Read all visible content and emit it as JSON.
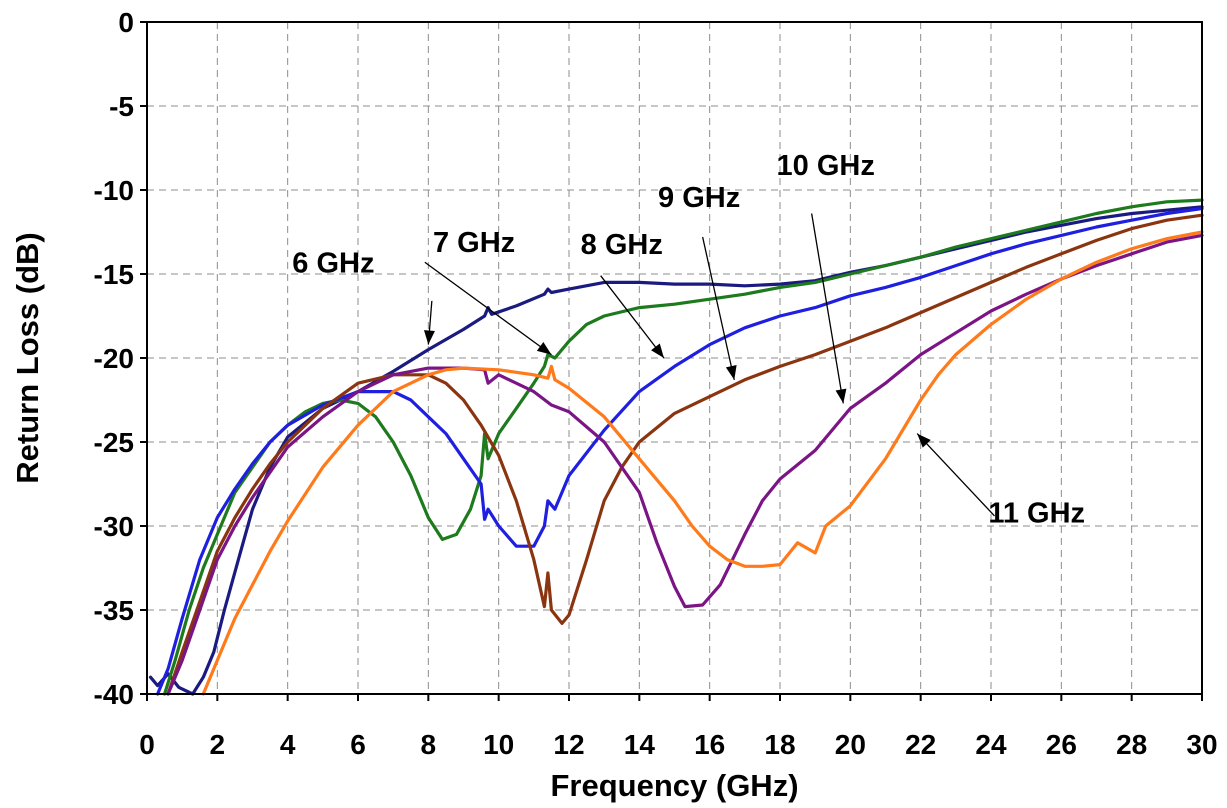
{
  "chart_data": {
    "type": "line",
    "title": "",
    "xlabel": "Frequency (GHz)",
    "ylabel": "Return Loss (dB)",
    "xlim": [
      0,
      30
    ],
    "ylim": [
      -40,
      0
    ],
    "x_ticks": [
      "0",
      "2",
      "4",
      "6",
      "8",
      "10",
      "12",
      "14",
      "16",
      "18",
      "20",
      "22",
      "24",
      "26",
      "28",
      "30"
    ],
    "y_ticks": [
      "0",
      "-5",
      "-10",
      "-15",
      "-20",
      "-25",
      "-30",
      "-35",
      "-40"
    ],
    "grid": true,
    "series": [
      {
        "name": "6 GHz",
        "color": "#1a1a80",
        "points": [
          [
            0.1,
            -39
          ],
          [
            0.3,
            -39.5
          ],
          [
            0.6,
            -38.8
          ],
          [
            0.9,
            -39.6
          ],
          [
            1.3,
            -40
          ],
          [
            1.6,
            -39
          ],
          [
            1.9,
            -37.5
          ],
          [
            2.2,
            -35
          ],
          [
            2.6,
            -32
          ],
          [
            3,
            -29
          ],
          [
            3.5,
            -26.5
          ],
          [
            4,
            -24.7
          ],
          [
            5,
            -23
          ],
          [
            6,
            -22
          ],
          [
            7,
            -20.8
          ],
          [
            8,
            -19.5
          ],
          [
            9,
            -18.3
          ],
          [
            9.6,
            -17.5
          ],
          [
            9.7,
            -17
          ],
          [
            9.8,
            -17.4
          ],
          [
            10.5,
            -16.9
          ],
          [
            11.3,
            -16.2
          ],
          [
            11.4,
            -15.9
          ],
          [
            11.5,
            -16.1
          ],
          [
            12,
            -15.9
          ],
          [
            13,
            -15.5
          ],
          [
            14,
            -15.5
          ],
          [
            15,
            -15.6
          ],
          [
            16,
            -15.6
          ],
          [
            17,
            -15.7
          ],
          [
            18,
            -15.6
          ],
          [
            19,
            -15.4
          ],
          [
            20,
            -14.9
          ],
          [
            21,
            -14.5
          ],
          [
            22,
            -14
          ],
          [
            23,
            -13.5
          ],
          [
            24,
            -13
          ],
          [
            25,
            -12.5
          ],
          [
            26,
            -12.1
          ],
          [
            27,
            -11.7
          ],
          [
            28,
            -11.4
          ],
          [
            29,
            -11.2
          ],
          [
            30,
            -11
          ]
        ]
      },
      {
        "name": "7 GHz",
        "color": "#1d7a1d",
        "points": [
          [
            0.5,
            -40
          ],
          [
            0.8,
            -38
          ],
          [
            1.2,
            -35
          ],
          [
            1.6,
            -32.5
          ],
          [
            2,
            -30.5
          ],
          [
            2.5,
            -28
          ],
          [
            3,
            -26.5
          ],
          [
            3.5,
            -25
          ],
          [
            4,
            -24
          ],
          [
            4.5,
            -23.2
          ],
          [
            5,
            -22.7
          ],
          [
            5.5,
            -22.5
          ],
          [
            6,
            -22.7
          ],
          [
            6.5,
            -23.5
          ],
          [
            7,
            -25
          ],
          [
            7.5,
            -27
          ],
          [
            8,
            -29.5
          ],
          [
            8.4,
            -30.8
          ],
          [
            8.8,
            -30.5
          ],
          [
            9.2,
            -29
          ],
          [
            9.5,
            -27
          ],
          [
            9.6,
            -24.5
          ],
          [
            9.7,
            -26
          ],
          [
            10,
            -24.5
          ],
          [
            10.5,
            -23
          ],
          [
            11,
            -21.5
          ],
          [
            11.3,
            -20.5
          ],
          [
            11.4,
            -19.8
          ],
          [
            11.6,
            -20
          ],
          [
            12,
            -19
          ],
          [
            12.5,
            -18
          ],
          [
            13,
            -17.5
          ],
          [
            14,
            -17
          ],
          [
            15,
            -16.8
          ],
          [
            16,
            -16.5
          ],
          [
            17,
            -16.2
          ],
          [
            18,
            -15.8
          ],
          [
            19,
            -15.5
          ],
          [
            20,
            -15
          ],
          [
            21,
            -14.5
          ],
          [
            22,
            -14
          ],
          [
            23,
            -13.4
          ],
          [
            24,
            -12.9
          ],
          [
            25,
            -12.4
          ],
          [
            26,
            -11.9
          ],
          [
            27,
            -11.4
          ],
          [
            28,
            -11
          ],
          [
            29,
            -10.7
          ],
          [
            30,
            -10.6
          ]
        ]
      },
      {
        "name": "8 GHz",
        "color": "#1f1fe0",
        "points": [
          [
            0.3,
            -40
          ],
          [
            0.6,
            -38.5
          ],
          [
            1,
            -35.5
          ],
          [
            1.5,
            -32
          ],
          [
            2,
            -29.5
          ],
          [
            2.5,
            -27.8
          ],
          [
            3,
            -26.3
          ],
          [
            3.5,
            -25
          ],
          [
            4,
            -24
          ],
          [
            5,
            -22.8
          ],
          [
            6,
            -22
          ],
          [
            7,
            -22
          ],
          [
            7.5,
            -22.5
          ],
          [
            8,
            -23.5
          ],
          [
            8.5,
            -24.5
          ],
          [
            9,
            -26
          ],
          [
            9.5,
            -27.5
          ],
          [
            9.6,
            -29.6
          ],
          [
            9.7,
            -29
          ],
          [
            10,
            -30
          ],
          [
            10.5,
            -31.2
          ],
          [
            11,
            -31.2
          ],
          [
            11.3,
            -30
          ],
          [
            11.4,
            -28.5
          ],
          [
            11.6,
            -29
          ],
          [
            12,
            -27
          ],
          [
            13,
            -24.3
          ],
          [
            14,
            -22
          ],
          [
            15,
            -20.5
          ],
          [
            16,
            -19.2
          ],
          [
            17,
            -18.2
          ],
          [
            18,
            -17.5
          ],
          [
            19,
            -17
          ],
          [
            20,
            -16.3
          ],
          [
            21,
            -15.8
          ],
          [
            22,
            -15.2
          ],
          [
            23,
            -14.5
          ],
          [
            24,
            -13.8
          ],
          [
            25,
            -13.2
          ],
          [
            26,
            -12.7
          ],
          [
            27,
            -12.2
          ],
          [
            28,
            -11.8
          ],
          [
            29,
            -11.4
          ],
          [
            30,
            -11.1
          ]
        ]
      },
      {
        "name": "9 GHz",
        "color": "#8b3510",
        "points": [
          [
            0.6,
            -40
          ],
          [
            1,
            -37.5
          ],
          [
            1.5,
            -34.5
          ],
          [
            2,
            -31.5
          ],
          [
            2.5,
            -29.5
          ],
          [
            3,
            -27.8
          ],
          [
            3.5,
            -26.3
          ],
          [
            4,
            -25
          ],
          [
            5,
            -23
          ],
          [
            6,
            -21.5
          ],
          [
            7,
            -21
          ],
          [
            8,
            -21
          ],
          [
            8.5,
            -21.5
          ],
          [
            9,
            -22.5
          ],
          [
            9.5,
            -24
          ],
          [
            10,
            -25.8
          ],
          [
            10.5,
            -28.5
          ],
          [
            11,
            -32
          ],
          [
            11.3,
            -34.8
          ],
          [
            11.4,
            -32.8
          ],
          [
            11.5,
            -35
          ],
          [
            11.8,
            -35.8
          ],
          [
            12,
            -35.3
          ],
          [
            12.5,
            -32
          ],
          [
            13,
            -28.5
          ],
          [
            13.5,
            -26.5
          ],
          [
            14,
            -25
          ],
          [
            15,
            -23.3
          ],
          [
            16,
            -22.3
          ],
          [
            17,
            -21.3
          ],
          [
            18,
            -20.5
          ],
          [
            19,
            -19.8
          ],
          [
            20,
            -19
          ],
          [
            21,
            -18.2
          ],
          [
            22,
            -17.3
          ],
          [
            23,
            -16.4
          ],
          [
            24,
            -15.5
          ],
          [
            25,
            -14.6
          ],
          [
            26,
            -13.8
          ],
          [
            27,
            -13
          ],
          [
            28,
            -12.3
          ],
          [
            29,
            -11.8
          ],
          [
            30,
            -11.5
          ]
        ]
      },
      {
        "name": "10 GHz",
        "color": "#7b1585",
        "points": [
          [
            0.6,
            -40
          ],
          [
            1,
            -38
          ],
          [
            1.5,
            -35
          ],
          [
            2,
            -32
          ],
          [
            2.5,
            -30
          ],
          [
            3,
            -28.3
          ],
          [
            3.5,
            -26.8
          ],
          [
            4,
            -25.3
          ],
          [
            5,
            -23.5
          ],
          [
            6,
            -22
          ],
          [
            7,
            -21
          ],
          [
            8,
            -20.6
          ],
          [
            9,
            -20.6
          ],
          [
            9.6,
            -20.7
          ],
          [
            9.7,
            -21.5
          ],
          [
            10,
            -21
          ],
          [
            11,
            -22
          ],
          [
            11.5,
            -22.8
          ],
          [
            12,
            -23.2
          ],
          [
            13,
            -25
          ],
          [
            14,
            -28
          ],
          [
            14.5,
            -31
          ],
          [
            15,
            -33.6
          ],
          [
            15.3,
            -34.8
          ],
          [
            15.8,
            -34.7
          ],
          [
            16.3,
            -33.5
          ],
          [
            17,
            -30.5
          ],
          [
            17.5,
            -28.5
          ],
          [
            18,
            -27.2
          ],
          [
            19,
            -25.5
          ],
          [
            20,
            -23
          ],
          [
            21,
            -21.5
          ],
          [
            22,
            -19.8
          ],
          [
            23,
            -18.5
          ],
          [
            24,
            -17.2
          ],
          [
            25,
            -16.2
          ],
          [
            26,
            -15.3
          ],
          [
            27,
            -14.5
          ],
          [
            28,
            -13.8
          ],
          [
            29,
            -13.1
          ],
          [
            30,
            -12.7
          ]
        ]
      },
      {
        "name": "11 GHz",
        "color": "#ff7a1a",
        "points": [
          [
            1.6,
            -40
          ],
          [
            2,
            -38
          ],
          [
            2.5,
            -35.5
          ],
          [
            3,
            -33.5
          ],
          [
            3.5,
            -31.5
          ],
          [
            4,
            -29.7
          ],
          [
            5,
            -26.5
          ],
          [
            6,
            -24
          ],
          [
            7,
            -22
          ],
          [
            8,
            -21
          ],
          [
            8.5,
            -20.7
          ],
          [
            9,
            -20.6
          ],
          [
            10,
            -20.7
          ],
          [
            11,
            -21
          ],
          [
            11.4,
            -21.2
          ],
          [
            11.5,
            -20.5
          ],
          [
            11.6,
            -21.3
          ],
          [
            12,
            -21.8
          ],
          [
            13,
            -23.5
          ],
          [
            14,
            -26
          ],
          [
            15,
            -28.5
          ],
          [
            15.5,
            -30
          ],
          [
            16,
            -31.2
          ],
          [
            16.5,
            -32
          ],
          [
            17,
            -32.4
          ],
          [
            17.5,
            -32.4
          ],
          [
            18,
            -32.3
          ],
          [
            18.5,
            -31
          ],
          [
            19,
            -31.6
          ],
          [
            19.3,
            -30
          ],
          [
            20,
            -28.8
          ],
          [
            21,
            -26
          ],
          [
            22,
            -22.5
          ],
          [
            22.5,
            -21
          ],
          [
            23,
            -19.8
          ],
          [
            24,
            -18
          ],
          [
            25,
            -16.5
          ],
          [
            26,
            -15.3
          ],
          [
            27,
            -14.3
          ],
          [
            28,
            -13.5
          ],
          [
            29,
            -12.9
          ],
          [
            30,
            -12.5
          ]
        ]
      }
    ],
    "annotations": [
      {
        "text": "6 GHz",
        "arrow_from": [
          8.1,
          -16.6
        ],
        "arrow_to": [
          8.0,
          -19.2
        ]
      },
      {
        "text": "7 GHz",
        "arrow_from": [
          7.9,
          -14.3
        ],
        "arrow_to": [
          11.5,
          -19.8
        ]
      },
      {
        "text": "8 GHz",
        "arrow_from": [
          12.9,
          -15.1
        ],
        "arrow_to": [
          14.7,
          -20
        ]
      },
      {
        "text": "9 GHz",
        "arrow_from": [
          15.8,
          -12.8
        ],
        "arrow_to": [
          16.7,
          -21.3
        ]
      },
      {
        "text": "10 GHz",
        "arrow_from": [
          18.9,
          -11.4
        ],
        "arrow_to": [
          19.8,
          -22.7
        ]
      },
      {
        "text": "11 GHz",
        "arrow_from": [
          24.1,
          -29.4
        ],
        "arrow_to": [
          21.9,
          -24.5
        ]
      }
    ]
  }
}
